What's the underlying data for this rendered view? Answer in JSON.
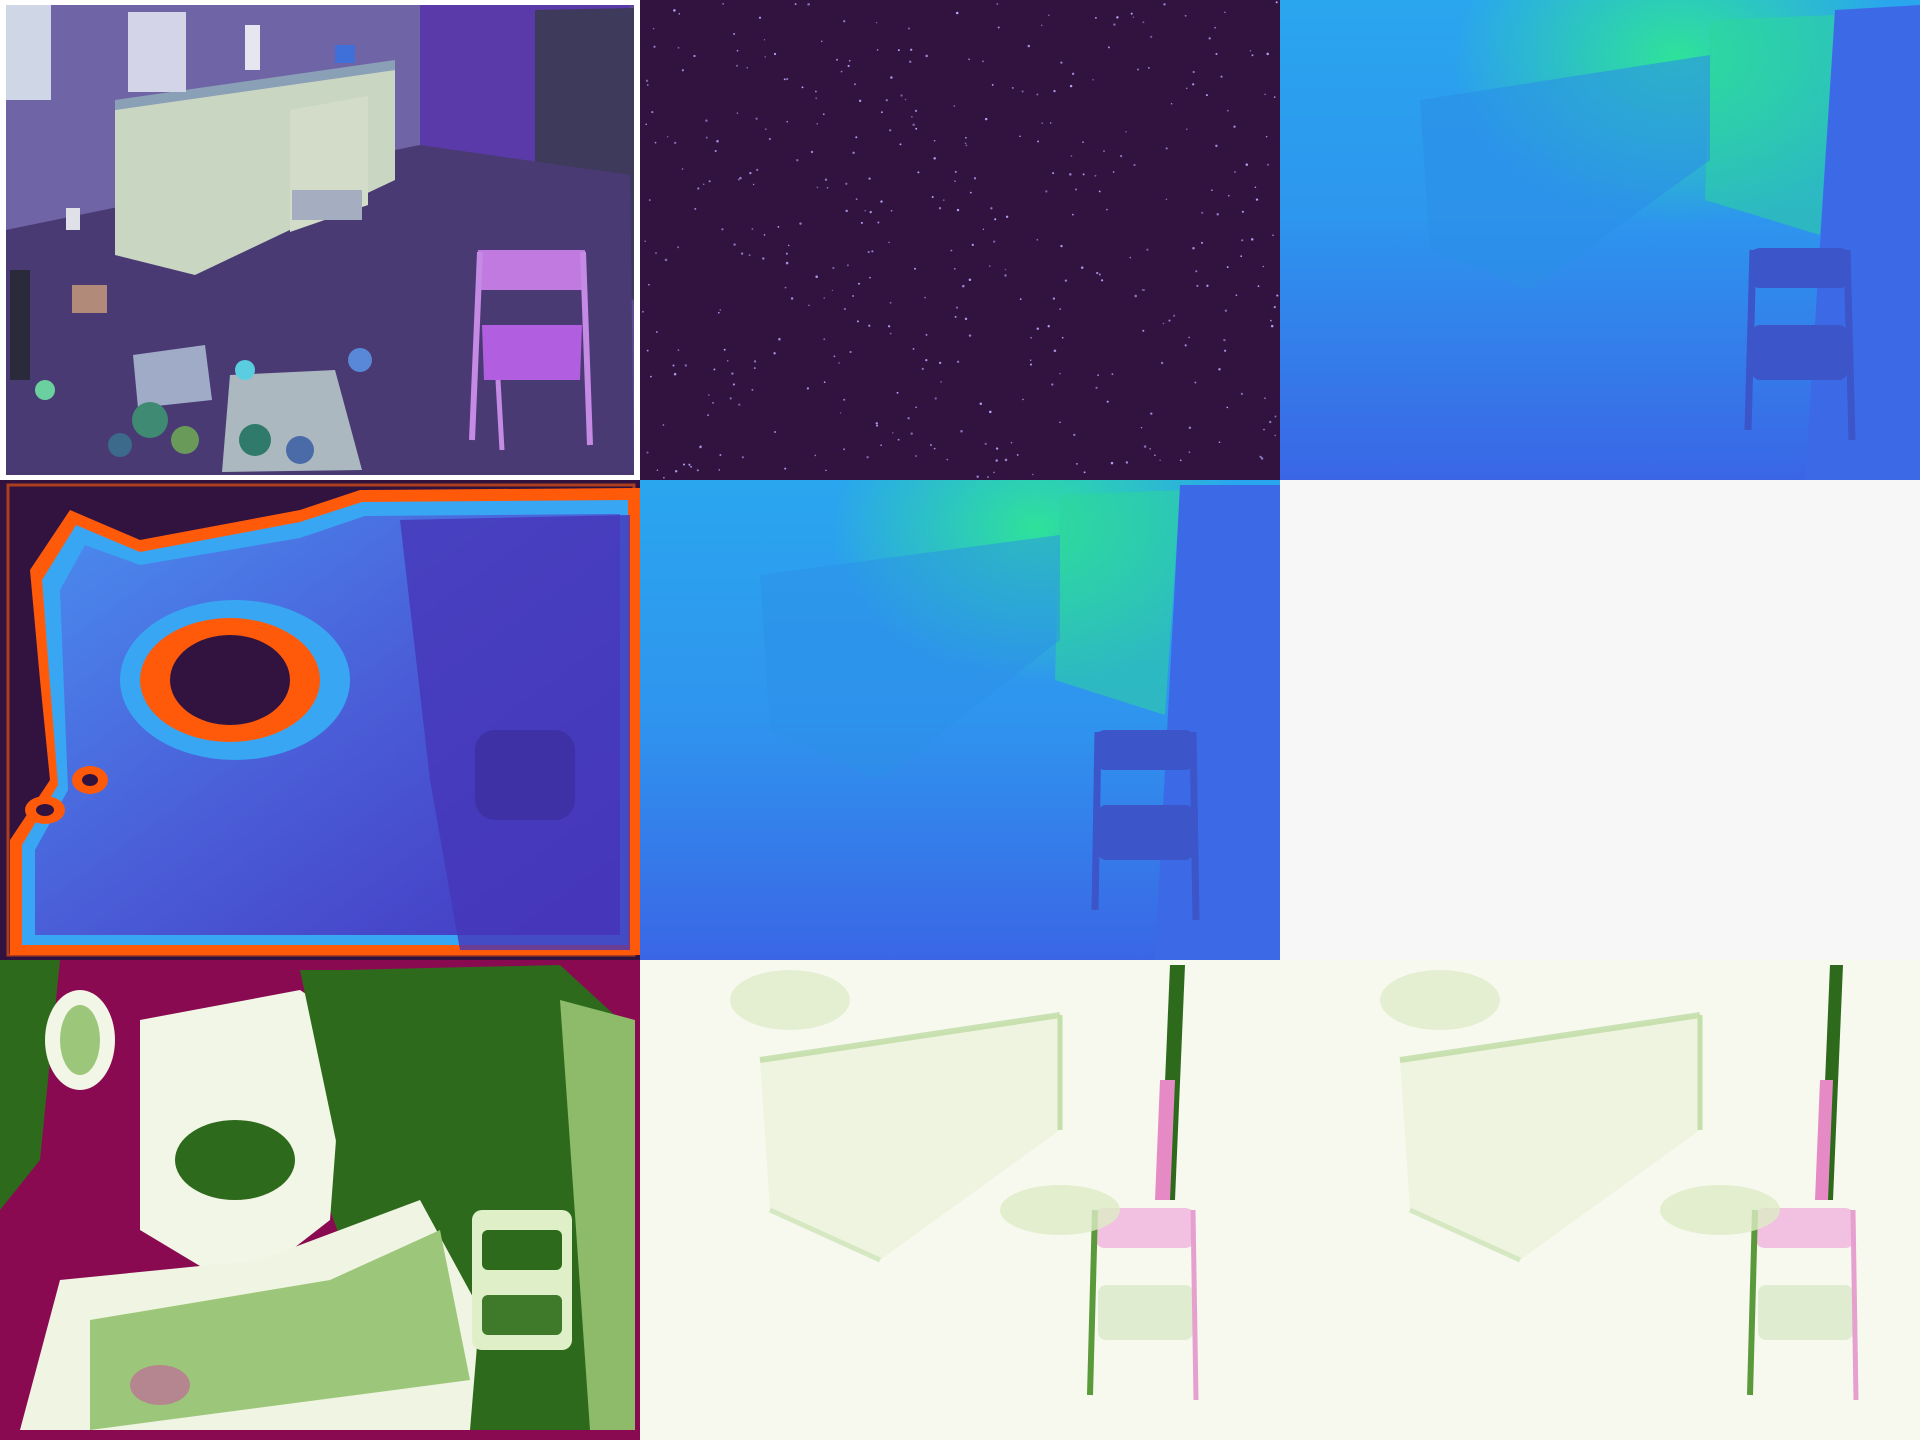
{
  "grid": {
    "rows": 3,
    "cols": 3
  },
  "panels": [
    {
      "id": "rgb-input",
      "row": 0,
      "col": 0,
      "content": "photo"
    },
    {
      "id": "sparse-depth",
      "row": 0,
      "col": 1,
      "content": "sparse-points"
    },
    {
      "id": "ground-truth-depth",
      "row": 0,
      "col": 2,
      "content": "depth-map"
    },
    {
      "id": "uncertainty-map",
      "row": 1,
      "col": 0,
      "content": "heatmap"
    },
    {
      "id": "predicted-depth",
      "row": 1,
      "col": 1,
      "content": "depth-map"
    },
    {
      "id": "blank-panel",
      "row": 1,
      "col": 2,
      "content": "empty"
    },
    {
      "id": "error-map-1",
      "row": 2,
      "col": 0,
      "content": "diverging-map"
    },
    {
      "id": "error-map-2",
      "row": 2,
      "col": 1,
      "content": "diverging-map"
    },
    {
      "id": "error-map-3",
      "row": 2,
      "col": 2,
      "content": "diverging-map"
    }
  ],
  "colors": {
    "sparse_background": "#32133f",
    "sparse_dot": "#b9a6ff",
    "depth_near": "#3a62e6",
    "depth_mid": "#2aa9ee",
    "depth_far": "#2ee29a",
    "uncert_low": "#4a44c8",
    "uncert_mid": "#38a6f2",
    "uncert_high": "#ff5a0a",
    "uncert_void": "#32133f",
    "diverge_pos": "#2e6a1c",
    "diverge_neg": "#8a0a52",
    "diverge_zero": "#f7f9ef",
    "blank": "#f7f7f7"
  },
  "sparse_points": {
    "count": 420
  }
}
